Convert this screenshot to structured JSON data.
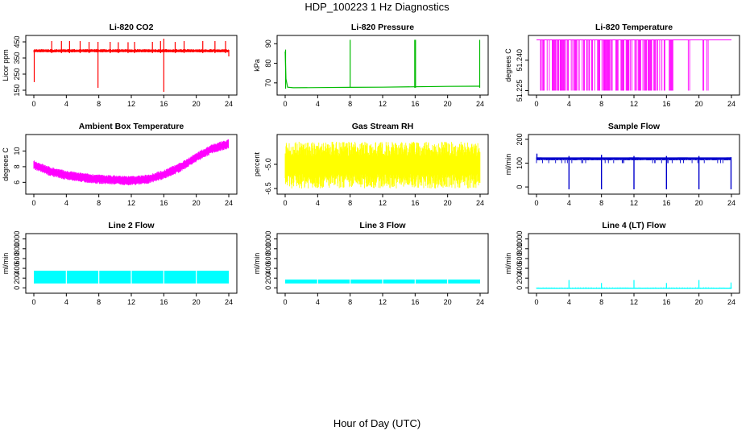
{
  "figure": {
    "title": "HDP_100223  1 Hz Diagnostics",
    "xlabel": "Hour of Day (UTC)"
  },
  "chart_data": [
    {
      "type": "line",
      "title": "Li-820 CO2",
      "ylabel": "Licor ppm",
      "color": "#ff0000",
      "xlim": [
        0,
        24
      ],
      "xticks": [
        "0",
        "4",
        "8",
        "12",
        "16",
        "20",
        "24"
      ],
      "ylim": [
        135,
        475
      ],
      "yticks": [
        "150",
        "250",
        "350",
        "450"
      ],
      "series": [
        {
          "x": [
            0,
            24
          ],
          "y": [
            395,
            395
          ]
        }
      ],
      "band": [
        385,
        405
      ],
      "spikes": [
        {
          "x": 0.05,
          "low": 200,
          "high": 400
        },
        {
          "x": 2.2,
          "low": 380,
          "high": 455
        },
        {
          "x": 3.4,
          "low": 380,
          "high": 455
        },
        {
          "x": 4.4,
          "low": 380,
          "high": 455
        },
        {
          "x": 5.7,
          "low": 380,
          "high": 455
        },
        {
          "x": 6.8,
          "low": 380,
          "high": 450
        },
        {
          "x": 7.9,
          "low": 165,
          "high": 450
        },
        {
          "x": 9.4,
          "low": 380,
          "high": 450
        },
        {
          "x": 10.4,
          "low": 380,
          "high": 448
        },
        {
          "x": 11.6,
          "low": 380,
          "high": 448
        },
        {
          "x": 12.4,
          "low": 380,
          "high": 450
        },
        {
          "x": 14.6,
          "low": 380,
          "high": 450
        },
        {
          "x": 15.6,
          "low": 380,
          "high": 455
        },
        {
          "x": 16.0,
          "low": 140,
          "high": 470
        },
        {
          "x": 17.4,
          "low": 380,
          "high": 450
        },
        {
          "x": 18.5,
          "low": 380,
          "high": 455
        },
        {
          "x": 20.8,
          "low": 380,
          "high": 455
        },
        {
          "x": 22.3,
          "low": 380,
          "high": 455
        },
        {
          "x": 23.6,
          "low": 380,
          "high": 455
        },
        {
          "x": 24.0,
          "low": 360,
          "high": 400
        }
      ]
    },
    {
      "type": "line",
      "title": "Li-820 Pressure",
      "ylabel": "kPa",
      "color": "#00bb00",
      "xlim": [
        0,
        24
      ],
      "xticks": [
        "0",
        "4",
        "8",
        "12",
        "16",
        "20",
        "24"
      ],
      "ylim": [
        65,
        93
      ],
      "yticks": [
        "70",
        "80",
        "90"
      ],
      "series": [
        {
          "x": [
            0,
            0.1,
            0.3,
            1,
            4,
            8,
            12,
            16,
            20,
            24
          ],
          "y": [
            86,
            72,
            67.8,
            67.5,
            67.6,
            67.7,
            67.8,
            68.0,
            68.2,
            68.3
          ]
        }
      ],
      "spikes": [
        {
          "x": 0.05,
          "low": 67,
          "high": 87
        },
        {
          "x": 8.0,
          "low": 67.5,
          "high": 92
        },
        {
          "x": 15.95,
          "low": 67.5,
          "high": 92
        },
        {
          "x": 16.05,
          "low": 67.5,
          "high": 92
        },
        {
          "x": 23.95,
          "low": 67.5,
          "high": 92
        }
      ]
    },
    {
      "type": "line",
      "title": "Li-820 Temperature",
      "ylabel": "degrees C",
      "color": "#ff00ff",
      "xlim": [
        0,
        24
      ],
      "xticks": [
        "0",
        "4",
        "8",
        "12",
        "16",
        "20",
        "24"
      ],
      "ylim": [
        51.224,
        51.251
      ],
      "yticks": [
        "51.225",
        "51.240"
      ],
      "series": [
        {
          "x": [
            0,
            24
          ],
          "y": [
            51.25,
            51.25
          ]
        }
      ],
      "flicker_ranges": [
        [
          0.5,
          17.0
        ],
        [
          18.5,
          19.0
        ],
        [
          20.5,
          21.2
        ]
      ],
      "flicker_low": 51.225,
      "flicker_high": 51.25
    },
    {
      "type": "line",
      "title": "Ambient Box Temperature",
      "ylabel": "degrees C",
      "color": "#ff00ff",
      "xlim": [
        0,
        24
      ],
      "xticks": [
        "0",
        "4",
        "8",
        "12",
        "16",
        "20",
        "24"
      ],
      "ylim": [
        4.8,
        11.8
      ],
      "yticks": [
        "6",
        "8",
        "10"
      ],
      "series": [
        {
          "x": [
            0,
            2,
            4,
            6,
            8,
            10,
            12,
            14,
            16,
            18,
            20,
            22,
            24
          ],
          "y": [
            8.2,
            7.4,
            6.9,
            6.6,
            6.4,
            6.3,
            6.2,
            6.4,
            7.0,
            7.9,
            9.2,
            10.3,
            10.9
          ]
        }
      ],
      "band_halfwidth": 0.55
    },
    {
      "type": "line",
      "title": "Gas Stream RH",
      "ylabel": "percent",
      "color": "#ffff00",
      "xlim": [
        0,
        24
      ],
      "xticks": [
        "0",
        "4",
        "8",
        "12",
        "16",
        "20",
        "24"
      ],
      "ylim": [
        -6.7,
        -3.3
      ],
      "yticks": [
        "-6.5",
        "-5.0"
      ],
      "series": [
        {
          "x": [
            0,
            24
          ],
          "y": [
            -5.0,
            -5.0
          ]
        }
      ],
      "noise_low": -6.5,
      "noise_high": -3.6
    },
    {
      "type": "line",
      "title": "Sample Flow",
      "ylabel": "ml/min",
      "color": "#0000cc",
      "xlim": [
        0,
        24
      ],
      "xticks": [
        "0",
        "4",
        "8",
        "12",
        "16",
        "20",
        "24"
      ],
      "ylim": [
        -20,
        210
      ],
      "yticks": [
        "0",
        "100",
        "200"
      ],
      "series": [
        {
          "x": [
            0,
            24
          ],
          "y": [
            120,
            120
          ]
        }
      ],
      "band": [
        112,
        124
      ],
      "dips": [
        {
          "x": 0.05,
          "low": 112,
          "high": 140
        },
        {
          "x": 4.0,
          "low": -10,
          "high": 130
        },
        {
          "x": 8.0,
          "low": -10,
          "high": 135
        },
        {
          "x": 12.0,
          "low": -10,
          "high": 130
        },
        {
          "x": 16.0,
          "low": -10,
          "high": 130
        },
        {
          "x": 20.0,
          "low": -10,
          "high": 130
        },
        {
          "x": 23.95,
          "low": -10,
          "high": 125
        }
      ]
    },
    {
      "type": "area",
      "title": "Line 2 Flow",
      "ylabel": "ml/min",
      "color": "#00ffff",
      "xlim": [
        0,
        24
      ],
      "xticks": [
        "0",
        "4",
        "8",
        "12",
        "16",
        "20",
        "24"
      ],
      "ylim": [
        -60,
        1060
      ],
      "yticks": [
        "0",
        "200",
        "400",
        "600",
        "800",
        "1000"
      ],
      "band": [
        90,
        350
      ],
      "gaps": [
        4.0,
        8.0,
        12.0,
        16.0,
        20.0
      ]
    },
    {
      "type": "area",
      "title": "Line 3 Flow",
      "ylabel": "ml/min",
      "color": "#00ffff",
      "xlim": [
        0,
        24
      ],
      "xticks": [
        "0",
        "4",
        "8",
        "12",
        "16",
        "20",
        "24"
      ],
      "ylim": [
        -60,
        1060
      ],
      "yticks": [
        "0",
        "200",
        "400",
        "600",
        "800",
        "1000"
      ],
      "band": [
        90,
        170
      ],
      "gaps": [
        4.0,
        8.0,
        12.0,
        16.0,
        20.0
      ]
    },
    {
      "type": "line",
      "title": "Line 4 (LT) Flow",
      "ylabel": "ml/min",
      "color": "#00ffff",
      "xlim": [
        0,
        24
      ],
      "xticks": [
        "0",
        "4",
        "8",
        "12",
        "16",
        "20",
        "24"
      ],
      "ylim": [
        -60,
        1060
      ],
      "yticks": [
        "0",
        "200",
        "400",
        "600",
        "800",
        "1000"
      ],
      "series": [
        {
          "x": [
            0,
            24
          ],
          "y": [
            -10,
            -10
          ]
        }
      ],
      "spikes": [
        {
          "x": 4.0,
          "low": -10,
          "high": 160
        },
        {
          "x": 8.0,
          "low": -10,
          "high": 100
        },
        {
          "x": 12.0,
          "low": -10,
          "high": 160
        },
        {
          "x": 16.0,
          "low": -10,
          "high": 100
        },
        {
          "x": 20.0,
          "low": -10,
          "high": 160
        },
        {
          "x": 23.95,
          "low": -10,
          "high": 110
        }
      ]
    }
  ]
}
